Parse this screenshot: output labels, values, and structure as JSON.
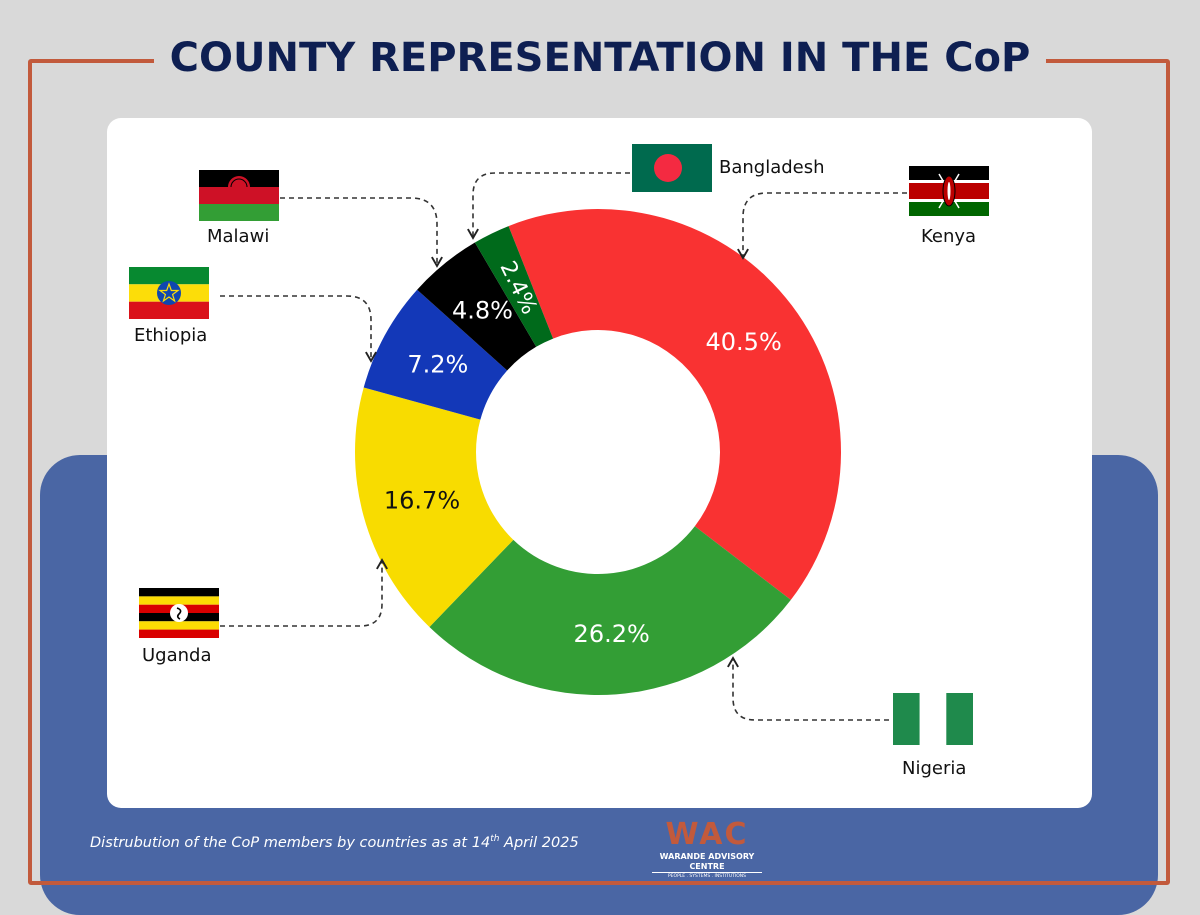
{
  "header": {
    "title": "COUNTY REPRESENTATION IN THE CoP"
  },
  "chart_data": {
    "type": "pie",
    "donut": true,
    "title": "COUNTY REPRESENTATION IN THE CoP",
    "slices": [
      {
        "label": "Kenya",
        "value": 40.5,
        "value_label": "40.5%",
        "color": "#f93232"
      },
      {
        "label": "Nigeria",
        "value": 26.2,
        "value_label": "26.2%",
        "color": "#339e35"
      },
      {
        "label": "Uganda",
        "value": 16.7,
        "value_label": "16.7%",
        "color": "#f8dc00"
      },
      {
        "label": "Ethiopia",
        "value": 7.2,
        "value_label": "7.2%",
        "color": "#1338b8"
      },
      {
        "label": "Malawi",
        "value": 4.8,
        "value_label": "4.8%",
        "color": "#000000"
      },
      {
        "label": "Bangladesh",
        "value": 2.4,
        "value_label": "2.4%",
        "color": "#006a1b"
      }
    ]
  },
  "countries": {
    "kenya": "Kenya",
    "nigeria": "Nigeria",
    "uganda": "Uganda",
    "ethiopia": "Ethiopia",
    "malawi": "Malawi",
    "bangladesh": "Bangladesh"
  },
  "footer": {
    "caption_main": "Distrubution of the CoP members by countries as at 14",
    "caption_sup": "th",
    "caption_end": " April 2025",
    "logo_mark": "WAC",
    "logo_name": "WARANDE ADVISORY CENTRE",
    "logo_tagline": "PEOPLE . SYSTEMS . INSTITUTIONS"
  },
  "colors": {
    "frame": "#c25a3c",
    "title": "#0e1f52",
    "panel": "#4a66a4"
  }
}
